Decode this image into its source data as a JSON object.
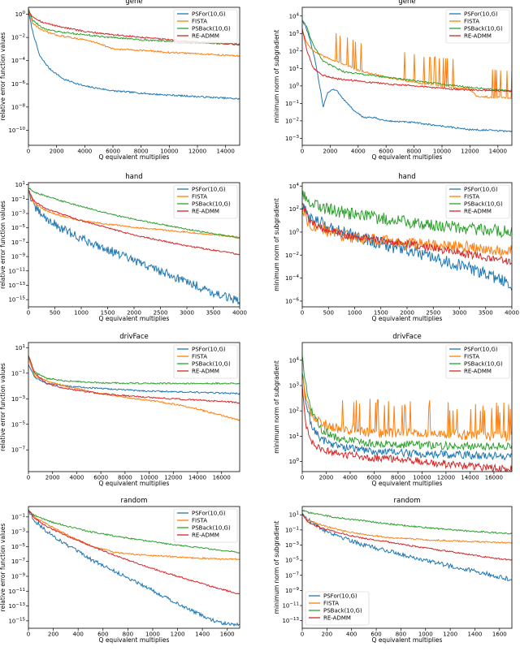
{
  "figure": {
    "colors": {
      "PSFor(10,G)": "#1f77b4",
      "FISTA": "#ff7f0e",
      "PSBack(10,G)": "#2ca02c",
      "RE-ADMM": "#d62728"
    }
  },
  "chart_data": [
    {
      "type": "line",
      "title": "gene",
      "xlabel": "Q equivalent multiplies",
      "ylabel": "relative error function values",
      "yscale": "log",
      "xlim": [
        0,
        15000
      ],
      "ylim_exp": [
        -11.3,
        0.6
      ],
      "xticks": [
        0,
        2000,
        4000,
        6000,
        8000,
        10000,
        12000,
        14000
      ],
      "yticks_exp": [
        -10,
        -8,
        -6,
        -4,
        -2,
        0
      ],
      "legend": "top-right",
      "series": [
        {
          "name": "PSFor(10,G)",
          "x": [
            0,
            300,
            800,
            1500,
            2500,
            4000,
            6000,
            9000,
            12000,
            15000
          ],
          "y_exp": [
            0.2,
            -1.5,
            -3.6,
            -4.7,
            -5.6,
            -6.2,
            -6.6,
            -6.9,
            -7.1,
            -7.3
          ]
        },
        {
          "name": "FISTA",
          "x": [
            0,
            300,
            1000,
            2000,
            4000,
            5000,
            6000,
            8000,
            10000,
            12000,
            15000
          ],
          "y_exp": [
            0.3,
            -0.8,
            -1.4,
            -1.8,
            -2.2,
            -2.5,
            -3.0,
            -3.1,
            -3.3,
            -3.4,
            -3.6
          ]
        },
        {
          "name": "PSBack(10,G)",
          "x": [
            0,
            300,
            1000,
            2000,
            5000,
            8000,
            11000,
            15000
          ],
          "y_exp": [
            0.5,
            -0.5,
            -1.2,
            -1.5,
            -1.9,
            -2.2,
            -2.4,
            -2.6
          ]
        },
        {
          "name": "RE-ADMM",
          "x": [
            0,
            300,
            1000,
            2000,
            4000,
            8000,
            12000,
            15000
          ],
          "y_exp": [
            0.3,
            -0.2,
            -0.7,
            -1.0,
            -1.5,
            -2.0,
            -2.4,
            -2.6
          ]
        }
      ]
    },
    {
      "type": "line",
      "title": "gene",
      "xlabel": "Q equivalent multiplies",
      "ylabel": "minimum norm of subgradient",
      "yscale": "log",
      "xlim": [
        0,
        15000
      ],
      "ylim_exp": [
        -3.4,
        4.5
      ],
      "xticks": [
        0,
        2000,
        4000,
        6000,
        8000,
        10000,
        12000,
        14000
      ],
      "yticks_exp": [
        -3,
        -2,
        -1,
        0,
        1,
        2,
        3,
        4
      ],
      "legend": "top-right",
      "series": [
        {
          "name": "PSFor(10,G)",
          "x": [
            0,
            200,
            500,
            900,
            1300,
            1500,
            1800,
            2200,
            2500,
            3000,
            3800,
            4400,
            5000,
            6000,
            8000,
            10000,
            12000,
            15000
          ],
          "y_exp": [
            3.7,
            3.5,
            2.8,
            1.5,
            -0.2,
            -1.2,
            -0.4,
            -0.2,
            -0.3,
            -0.8,
            -1.5,
            -1.8,
            -1.8,
            -2.0,
            -2.1,
            -2.3,
            -2.5,
            -2.6
          ]
        },
        {
          "name": "FISTA",
          "x": [
            0,
            300,
            800,
            1500,
            2500,
            4000,
            6000,
            8000,
            10000,
            12000,
            12500,
            15000
          ],
          "y_exp": [
            3.2,
            2.5,
            2.0,
            1.7,
            1.4,
            0.9,
            0.5,
            0.2,
            0.0,
            -0.2,
            -0.6,
            -0.7
          ]
        },
        {
          "name": "PSBack(10,G)",
          "x": [
            0,
            300,
            800,
            1500,
            3000,
            5000,
            8000,
            11000,
            15000
          ],
          "y_exp": [
            3.8,
            3.4,
            2.3,
            1.4,
            0.8,
            0.6,
            0.3,
            0.0,
            -0.3
          ]
        },
        {
          "name": "RE-ADMM",
          "x": [
            0,
            300,
            800,
            1500,
            2500,
            5000,
            8000,
            11000,
            15000
          ],
          "y_exp": [
            3.3,
            2.1,
            1.0,
            0.6,
            0.4,
            0.2,
            0.0,
            -0.2,
            -0.3
          ]
        }
      ]
    },
    {
      "type": "line",
      "title": "hand",
      "xlabel": "Q equivalent multiplies",
      "ylabel": "relative error function values",
      "yscale": "log",
      "xlim": [
        0,
        4000
      ],
      "ylim_exp": [
        -16,
        1.3
      ],
      "xticks": [
        0,
        500,
        1000,
        1500,
        2000,
        2500,
        3000,
        3500,
        4000
      ],
      "yticks_exp": [
        -15,
        -13,
        -11,
        -9,
        -7,
        -5,
        -3,
        -1,
        1
      ],
      "legend": "top-right",
      "series": [
        {
          "name": "PSFor(10,G)",
          "x": [
            0,
            100,
            300,
            600,
            1000,
            1500,
            2000,
            2500,
            3000,
            3500,
            4000
          ],
          "y_exp": [
            0.3,
            -2,
            -3.5,
            -5,
            -6.5,
            -8,
            -9.6,
            -11,
            -12.5,
            -14,
            -15.3
          ]
        },
        {
          "name": "FISTA",
          "x": [
            0,
            100,
            300,
            600,
            1000,
            1500,
            2000,
            3000,
            4000
          ],
          "y_exp": [
            0.3,
            -1.5,
            -2.5,
            -3.3,
            -4.0,
            -4.5,
            -4.9,
            -5.6,
            -6.3
          ]
        },
        {
          "name": "PSBack(10,G)",
          "x": [
            0,
            100,
            300,
            600,
            1000,
            1500,
            2000,
            3000,
            4000
          ],
          "y_exp": [
            0.6,
            0,
            -0.5,
            -1.2,
            -2.0,
            -3.0,
            -3.8,
            -5.2,
            -6.4
          ]
        },
        {
          "name": "RE-ADMM",
          "x": [
            0,
            100,
            300,
            600,
            1000,
            1500,
            2000,
            3000,
            4000
          ],
          "y_exp": [
            0.3,
            -1.2,
            -2.2,
            -3.0,
            -4.0,
            -5.0,
            -6.0,
            -7.5,
            -8.7
          ]
        }
      ]
    },
    {
      "type": "line",
      "title": "hand",
      "xlabel": "Q equivalent multiplies",
      "ylabel": "minimum norm of subgradient",
      "yscale": "log",
      "xlim": [
        0,
        4000
      ],
      "ylim_exp": [
        -6.5,
        4.3
      ],
      "xticks": [
        0,
        500,
        1000,
        1500,
        2000,
        2500,
        3000,
        3500,
        4000
      ],
      "yticks_exp": [
        -6,
        -4,
        -2,
        0,
        2,
        4
      ],
      "legend": "top-right",
      "series": [
        {
          "name": "PSFor(10,G)",
          "x": [
            0,
            100,
            300,
            600,
            1000,
            1500,
            2000,
            2500,
            3000,
            3500,
            4000
          ],
          "y_exp": [
            2.3,
            1.4,
            0.9,
            0.3,
            -0.3,
            -1.0,
            -1.6,
            -2.3,
            -2.9,
            -3.6,
            -4.6
          ]
        },
        {
          "name": "FISTA",
          "x": [
            0,
            100,
            300,
            700,
            1200,
            2000,
            3000,
            4000
          ],
          "y_exp": [
            2.2,
            1.0,
            0.3,
            -0.2,
            -0.6,
            -1.0,
            -1.3,
            -1.6
          ]
        },
        {
          "name": "PSBack(10,G)",
          "x": [
            0,
            100,
            300,
            600,
            1000,
            1500,
            2000,
            3000,
            4000
          ],
          "y_exp": [
            3.2,
            2.7,
            2.3,
            1.9,
            1.5,
            1.2,
            0.9,
            0.4,
            0.0
          ]
        },
        {
          "name": "RE-ADMM",
          "x": [
            0,
            100,
            300,
            600,
            1000,
            1500,
            2000,
            3000,
            4000
          ],
          "y_exp": [
            2.5,
            1.3,
            0.5,
            0.0,
            -0.4,
            -0.7,
            -1.0,
            -1.8,
            -2.6
          ]
        }
      ]
    },
    {
      "type": "line",
      "title": "drivFace",
      "xlabel": "Q equivalent multiplies",
      "ylabel": "relative error function values",
      "yscale": "log",
      "xlim": [
        0,
        17500
      ],
      "ylim_exp": [
        -8.7,
        1.4
      ],
      "xticks": [
        0,
        2000,
        4000,
        6000,
        8000,
        10000,
        12000,
        14000,
        16000
      ],
      "yticks_exp": [
        -7,
        -5,
        -3,
        -1,
        1
      ],
      "legend": "top-right",
      "series": [
        {
          "name": "PSFor(10,G)",
          "x": [
            0,
            500,
            1500,
            3000,
            6000,
            10000,
            14000,
            17500
          ],
          "y_exp": [
            -0.3,
            -1.3,
            -1.8,
            -2.0,
            -2.2,
            -2.4,
            -2.5,
            -2.6
          ]
        },
        {
          "name": "FISTA",
          "x": [
            0,
            500,
            1500,
            3000,
            6000,
            9000,
            12000,
            14000,
            16000,
            17500
          ],
          "y_exp": [
            0.2,
            -1.2,
            -1.6,
            -2.0,
            -2.6,
            -3.0,
            -3.4,
            -3.8,
            -4.3,
            -4.7
          ]
        },
        {
          "name": "PSBack(10,G)",
          "x": [
            0,
            500,
            1500,
            3000,
            6000,
            10000,
            14000,
            17500
          ],
          "y_exp": [
            0.3,
            -0.9,
            -1.4,
            -1.6,
            -1.75,
            -1.8,
            -1.8,
            -1.8
          ]
        },
        {
          "name": "RE-ADMM",
          "x": [
            0,
            500,
            1500,
            3000,
            6000,
            10000,
            14000,
            17500
          ],
          "y_exp": [
            0.4,
            -1.0,
            -1.8,
            -2.2,
            -2.6,
            -2.9,
            -3.1,
            -3.3
          ]
        }
      ]
    },
    {
      "type": "line",
      "title": "drivFace",
      "xlabel": "Q equivalent multiplies",
      "ylabel": "minimum norm of subgradient",
      "yscale": "log",
      "xlim": [
        0,
        17500
      ],
      "ylim_exp": [
        -0.4,
        4.7
      ],
      "xticks": [
        0,
        2000,
        4000,
        6000,
        8000,
        10000,
        12000,
        14000,
        16000
      ],
      "yticks_exp": [
        0,
        1,
        2,
        3,
        4
      ],
      "legend": "top-right",
      "series": [
        {
          "name": "PSFor(10,G)",
          "x": [
            0,
            300,
            800,
            1500,
            3000,
            6000,
            10000,
            14000,
            17500
          ],
          "y_exp": [
            3.5,
            2.3,
            1.4,
            0.9,
            0.6,
            0.4,
            0.3,
            0.25,
            0.2
          ]
        },
        {
          "name": "FISTA",
          "x": [
            0,
            300,
            800,
            1500,
            3000,
            6000,
            10000,
            14000,
            17500
          ],
          "y_exp": [
            3.4,
            2.4,
            1.8,
            1.5,
            1.3,
            1.15,
            1.1,
            1.05,
            1.0
          ]
        },
        {
          "name": "PSBack(10,G)",
          "x": [
            0,
            300,
            800,
            1500,
            3000,
            6000,
            10000,
            14000,
            17500
          ],
          "y_exp": [
            4.2,
            3.0,
            2.0,
            1.3,
            0.9,
            0.7,
            0.65,
            0.6,
            0.6
          ]
        },
        {
          "name": "RE-ADMM",
          "x": [
            0,
            300,
            800,
            1500,
            3000,
            6000,
            10000,
            14000,
            17500
          ],
          "y_exp": [
            3.0,
            1.5,
            0.8,
            0.5,
            0.3,
            0.15,
            0.0,
            -0.2,
            -0.3
          ]
        }
      ]
    },
    {
      "type": "line",
      "title": "random",
      "xlabel": "Q equivalent multiplies",
      "ylabel": "relative error function values",
      "yscale": "log",
      "xlim": [
        0,
        1700
      ],
      "ylim_exp": [
        -16,
        0.4
      ],
      "xticks": [
        0,
        200,
        400,
        600,
        800,
        1000,
        1200,
        1400,
        1600
      ],
      "yticks_exp": [
        -15,
        -13,
        -11,
        -9,
        -7,
        -5,
        -3,
        -1
      ],
      "legend": "top-right",
      "series": [
        {
          "name": "PSFor(10,G)",
          "x": [
            0,
            50,
            150,
            300,
            500,
            700,
            900,
            1100,
            1300,
            1450,
            1550,
            1700
          ],
          "y_exp": [
            -0.1,
            -1.5,
            -3,
            -4.7,
            -6.7,
            -8.4,
            -10,
            -11.8,
            -13.5,
            -14.7,
            -15.3,
            -15.6
          ]
        },
        {
          "name": "FISTA",
          "x": [
            0,
            50,
            150,
            300,
            500,
            700,
            900,
            1100,
            1300,
            1500,
            1700
          ],
          "y_exp": [
            -0.1,
            -1.0,
            -2.0,
            -3.3,
            -4.9,
            -5.8,
            -6.1,
            -6.3,
            -6.5,
            -6.65,
            -6.7
          ]
        },
        {
          "name": "PSBack(10,G)",
          "x": [
            0,
            50,
            150,
            300,
            500,
            700,
            900,
            1100,
            1300,
            1500,
            1700
          ],
          "y_exp": [
            -0.3,
            -0.8,
            -1.5,
            -2.2,
            -3.0,
            -3.6,
            -4.1,
            -4.6,
            -5.0,
            -5.4,
            -5.8
          ]
        },
        {
          "name": "RE-ADMM",
          "x": [
            0,
            50,
            150,
            300,
            500,
            700,
            900,
            1100,
            1300,
            1500,
            1700
          ],
          "y_exp": [
            0,
            -1.2,
            -2.3,
            -3.5,
            -4.9,
            -6.2,
            -7.4,
            -8.5,
            -9.5,
            -10.5,
            -11.4
          ]
        }
      ]
    },
    {
      "type": "line",
      "title": "random",
      "xlabel": "Q equivalent multiplies",
      "ylabel": "minimum norm of subgradient",
      "yscale": "log",
      "xlim": [
        0,
        1700
      ],
      "ylim_exp": [
        -14,
        2.1
      ],
      "xticks": [
        0,
        200,
        400,
        600,
        800,
        1000,
        1200,
        1400,
        1600
      ],
      "yticks_exp": [
        -13,
        -11,
        -9,
        -7,
        -5,
        -3,
        -1,
        1
      ],
      "legend": "bottom-left",
      "series": [
        {
          "name": "PSFor(10,G)",
          "x": [
            0,
            50,
            150,
            300,
            500,
            700,
            900,
            1100,
            1300,
            1500,
            1700
          ],
          "y_exp": [
            1.2,
            0.3,
            -0.8,
            -1.8,
            -3.0,
            -3.8,
            -4.6,
            -5.4,
            -6.1,
            -6.8,
            -7.6
          ]
        },
        {
          "name": "FISTA",
          "x": [
            0,
            50,
            150,
            300,
            500,
            700,
            1000,
            1300,
            1500,
            1700
          ],
          "y_exp": [
            1.0,
            0.3,
            -0.3,
            -1.0,
            -1.6,
            -2.0,
            -2.3,
            -2.5,
            -2.6,
            -2.7
          ]
        },
        {
          "name": "PSBack(10,G)",
          "x": [
            0,
            50,
            150,
            300,
            500,
            700,
            1000,
            1300,
            1500,
            1700
          ],
          "y_exp": [
            1.6,
            1.3,
            1.0,
            0.6,
            0.2,
            -0.2,
            -0.7,
            -1.1,
            -1.3,
            -1.5
          ]
        },
        {
          "name": "RE-ADMM",
          "x": [
            0,
            50,
            150,
            300,
            500,
            700,
            1000,
            1300,
            1500,
            1700
          ],
          "y_exp": [
            1.1,
            0.0,
            -0.7,
            -1.4,
            -2.1,
            -2.6,
            -3.4,
            -4.1,
            -4.6,
            -5.0
          ]
        }
      ]
    }
  ]
}
